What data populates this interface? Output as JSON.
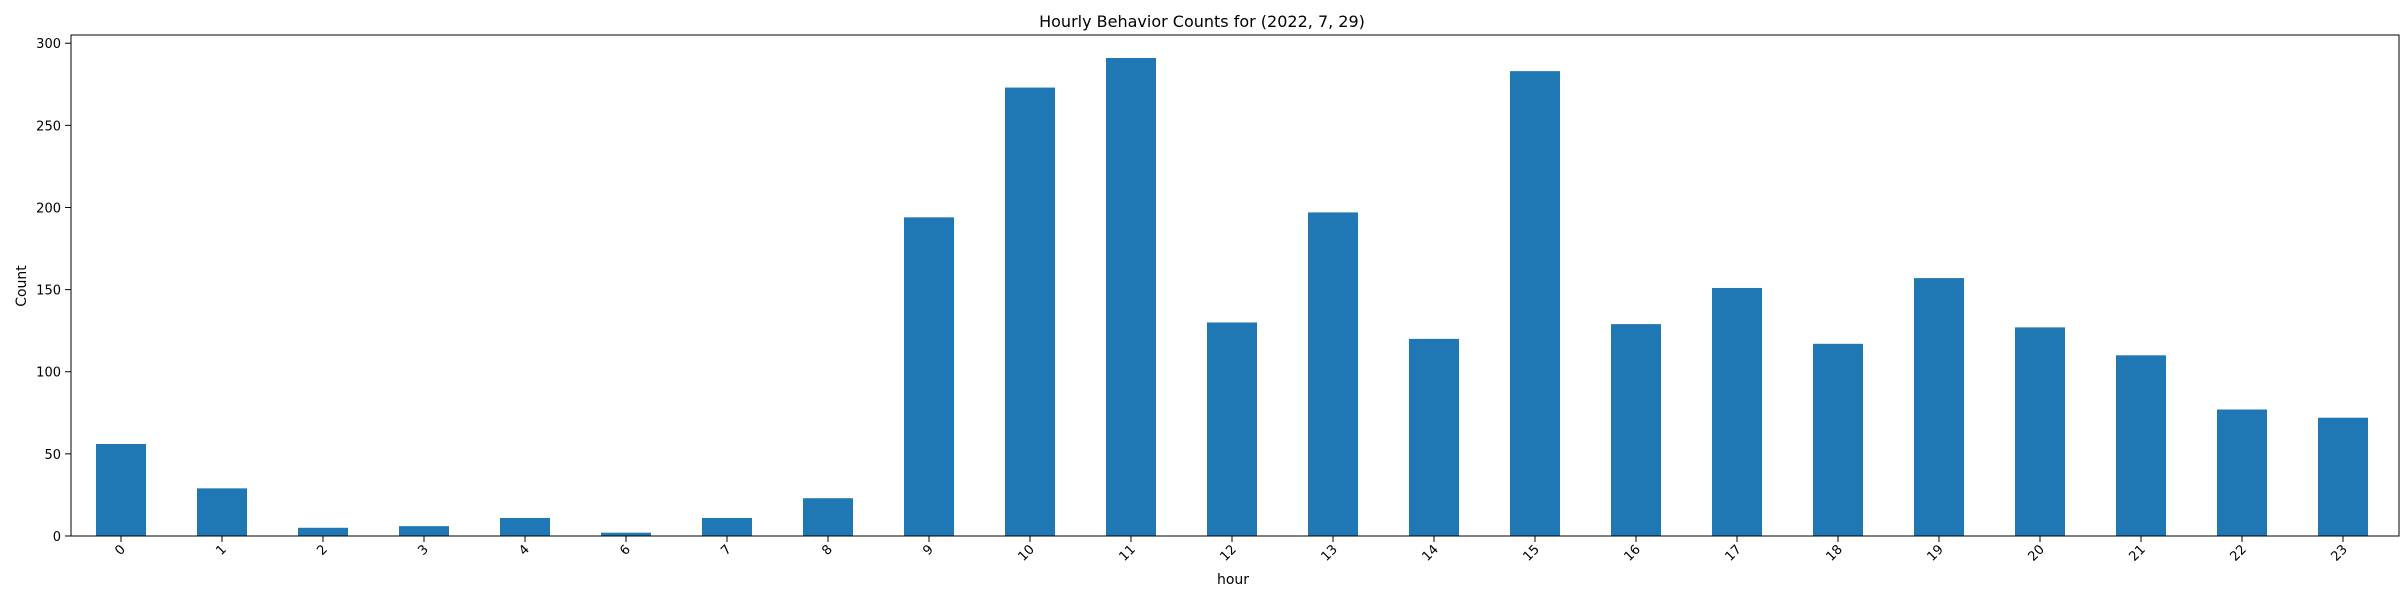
{
  "chart_data": {
    "type": "bar",
    "title": "Hourly Behavior Counts for (2022, 7, 29)",
    "xlabel": "hour",
    "ylabel": "Count",
    "categories": [
      "0",
      "1",
      "2",
      "3",
      "4",
      "6",
      "7",
      "8",
      "9",
      "10",
      "11",
      "12",
      "13",
      "14",
      "15",
      "16",
      "17",
      "18",
      "19",
      "20",
      "21",
      "22",
      "23"
    ],
    "values": [
      56,
      29,
      5,
      6,
      11,
      2,
      11,
      23,
      194,
      273,
      291,
      130,
      197,
      120,
      283,
      129,
      151,
      117,
      157,
      127,
      110,
      77,
      72
    ],
    "ylim": [
      0,
      305
    ],
    "yticks": [
      0,
      50,
      100,
      150,
      200,
      250,
      300
    ],
    "grid": false,
    "legend": "none",
    "bar_color": "#1f77b4"
  }
}
